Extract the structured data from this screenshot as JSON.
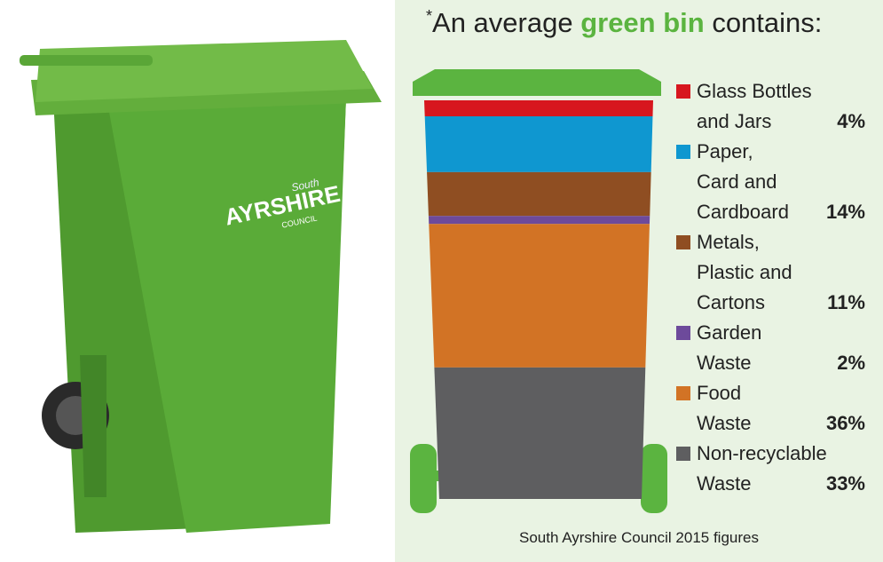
{
  "chart_data": {
    "type": "bar",
    "title": [
      "*",
      "An average ",
      "green bin",
      " contains:"
    ],
    "source": "South Ayrshire Council 2015 figures",
    "logo": [
      "South",
      "AYRSHIRE",
      "COUNCIL"
    ],
    "series": [
      {
        "name": "Glass Bottles and Jars",
        "color": "#d7161e",
        "values": [
          4
        ],
        "value_labels": [
          "4%"
        ]
      },
      {
        "name": "Paper, Card and Cardboard",
        "color": "#0f97d0",
        "values": [
          14
        ],
        "value_labels": [
          "14%"
        ]
      },
      {
        "name": "Metals, Plastic and Cartons",
        "color": "#8f4e22",
        "values": [
          11
        ],
        "value_labels": [
          "11%"
        ]
      },
      {
        "name": "Garden Waste",
        "color": "#6d4a9b",
        "values": [
          2
        ],
        "value_labels": [
          "2%"
        ]
      },
      {
        "name": "Food Waste",
        "color": "#d27325",
        "values": [
          36
        ],
        "value_labels": [
          "36%"
        ]
      },
      {
        "name": "Non-recyclable Waste",
        "color": "#5e5e60",
        "values": [
          33
        ],
        "value_labels": [
          "33%"
        ]
      }
    ]
  }
}
